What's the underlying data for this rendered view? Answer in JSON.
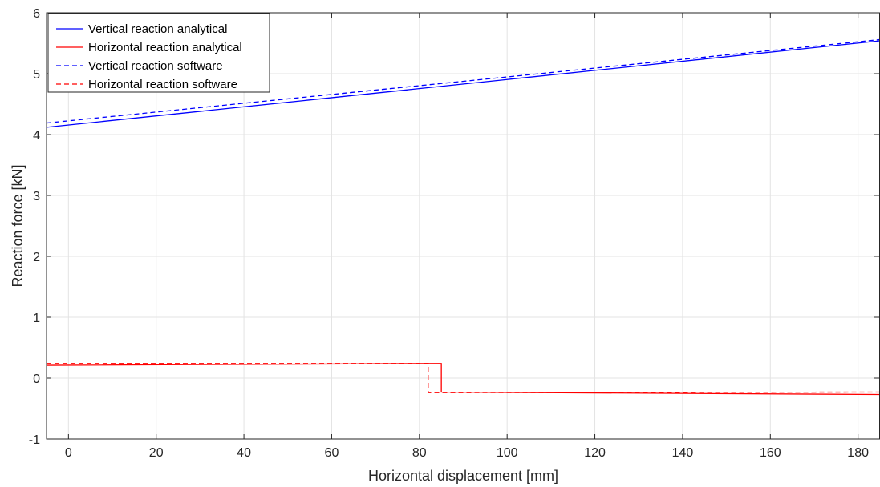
{
  "chart_data": {
    "type": "line",
    "title": "",
    "xlabel": "Horizontal displacement [mm]",
    "ylabel": "Reaction force [kN]",
    "xlim": [
      -5,
      185
    ],
    "ylim": [
      -1,
      6
    ],
    "xticks": [
      0,
      20,
      40,
      60,
      80,
      100,
      120,
      140,
      160,
      180
    ],
    "yticks": [
      -1,
      0,
      1,
      2,
      3,
      4,
      5,
      6
    ],
    "grid": true,
    "legend_position": "top-left",
    "series": [
      {
        "name": "Vertical reaction analytical",
        "color": "#0000ff",
        "dash": "solid",
        "x": [
          -5,
          185
        ],
        "y": [
          4.12,
          5.54
        ]
      },
      {
        "name": "Horizontal reaction analytical",
        "color": "#ff0000",
        "dash": "solid",
        "x": [
          -5,
          85,
          85,
          185
        ],
        "y": [
          0.21,
          0.24,
          -0.23,
          -0.27
        ]
      },
      {
        "name": "Vertical reaction software",
        "color": "#0000ff",
        "dash": "dashed",
        "x": [
          -5,
          185
        ],
        "y": [
          4.19,
          5.56
        ]
      },
      {
        "name": "Horizontal reaction software",
        "color": "#ff0000",
        "dash": "dashed",
        "x": [
          -5,
          82,
          82,
          185
        ],
        "y": [
          0.24,
          0.24,
          -0.24,
          -0.23
        ]
      }
    ]
  }
}
